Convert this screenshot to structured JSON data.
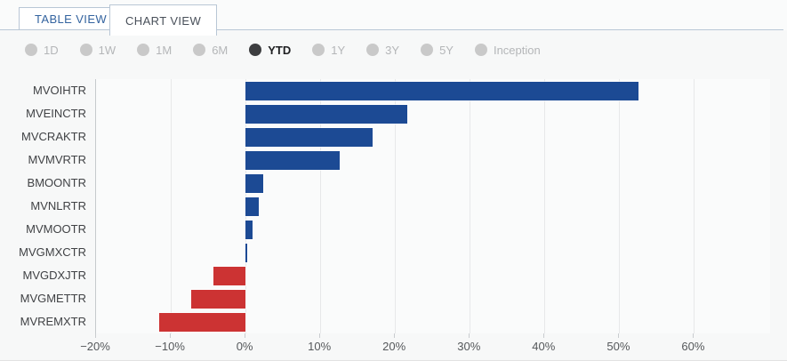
{
  "tabs": [
    {
      "label": "TABLE VIEW",
      "active": false
    },
    {
      "label": "CHART VIEW",
      "active": true
    }
  ],
  "periods": [
    {
      "label": "1D",
      "selected": false
    },
    {
      "label": "1W",
      "selected": false
    },
    {
      "label": "1M",
      "selected": false
    },
    {
      "label": "6M",
      "selected": false
    },
    {
      "label": "YTD",
      "selected": true
    },
    {
      "label": "1Y",
      "selected": false
    },
    {
      "label": "3Y",
      "selected": false
    },
    {
      "label": "5Y",
      "selected": false
    },
    {
      "label": "Inception",
      "selected": false
    }
  ],
  "colors": {
    "positive_bar": "#1c4a94",
    "negative_bar": "#cc3333",
    "inactive_tab_text": "#33639f",
    "active_tab_text": "#49505a"
  },
  "chart_data": {
    "type": "bar",
    "orientation": "horizontal",
    "title": "",
    "xlabel": "",
    "ylabel": "",
    "unit": "%",
    "categories": [
      "MVOIHTR",
      "MVEINCTR",
      "MVCRAKTR",
      "MVMVRTR",
      "BMOONTR",
      "MVNLRTR",
      "MVMOOTR",
      "MVGMXCTR",
      "MVGDXJTR",
      "MVGMETTR",
      "MVREMXTR"
    ],
    "values": [
      52.6,
      21.7,
      17.0,
      12.6,
      2.4,
      1.8,
      0.9,
      0.2,
      -4.3,
      -7.3,
      -11.5
    ],
    "xlim": [
      -20,
      70.3
    ],
    "xticks": [
      -20,
      -10,
      0,
      10,
      20,
      30,
      40,
      50,
      60
    ],
    "xtick_labels": [
      "−20%",
      "−10%",
      "0%",
      "10%",
      "20%",
      "30%",
      "40%",
      "50%",
      "60%"
    ],
    "grid": true,
    "legend": false
  }
}
